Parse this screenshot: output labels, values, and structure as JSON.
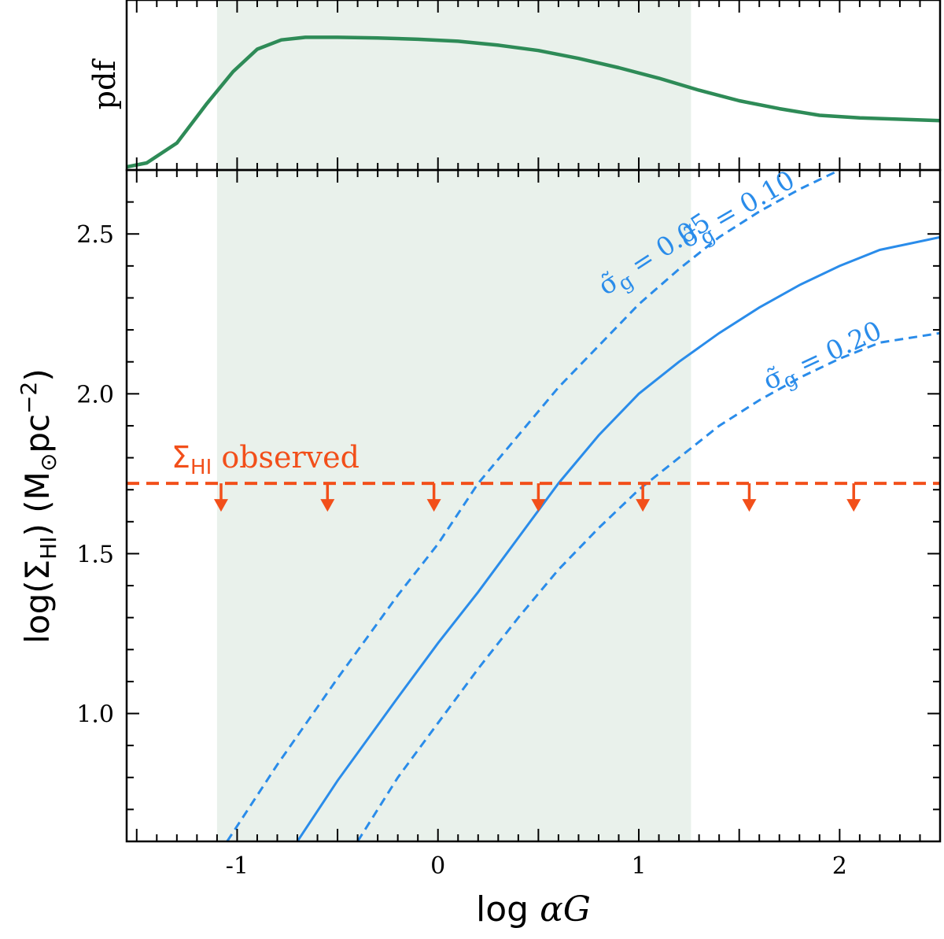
{
  "chart_data": [
    {
      "type": "line",
      "panel": "top",
      "ylabel": "pdf",
      "x_range": [
        -1.55,
        2.5
      ],
      "shaded_region": {
        "x_start": -1.1,
        "x_end": 1.26,
        "color": "#e9f1eb"
      },
      "series": [
        {
          "name": "pdf",
          "color": "#2e8b57",
          "x": [
            -1.55,
            -1.45,
            -1.3,
            -1.15,
            -1.02,
            -0.9,
            -0.78,
            -0.66,
            -0.5,
            -0.3,
            -0.1,
            0.1,
            0.3,
            0.5,
            0.7,
            0.9,
            1.1,
            1.3,
            1.5,
            1.7,
            1.9,
            2.1,
            2.3,
            2.5
          ],
          "y": [
            0.0,
            0.03,
            0.18,
            0.48,
            0.72,
            0.89,
            0.96,
            0.98,
            0.98,
            0.975,
            0.965,
            0.95,
            0.92,
            0.88,
            0.82,
            0.75,
            0.67,
            0.58,
            0.5,
            0.44,
            0.39,
            0.37,
            0.36,
            0.35
          ]
        }
      ]
    },
    {
      "type": "line",
      "panel": "bottom",
      "xlabel_main": "log ",
      "xlabel_greek": "αG",
      "ylabel": "log(Σ_HI) (M_⊙pc^−2)",
      "xlim": [
        -1.55,
        2.5
      ],
      "ylim": [
        0.6,
        2.7
      ],
      "x_ticks": [
        -1,
        0,
        1,
        2
      ],
      "x_tick_labels": [
        "-1",
        "0",
        "1",
        "2"
      ],
      "y_ticks": [
        1.0,
        1.5,
        2.0,
        2.5
      ],
      "y_tick_labels": [
        "1.0",
        "1.5",
        "2.0",
        "2.5"
      ],
      "shaded_region": {
        "x_start": -1.1,
        "x_end": 1.26,
        "color": "#e9f1eb"
      },
      "series": [
        {
          "name": "σ̃g = 0.05",
          "label_prefix": "σ̃",
          "label_sub": "g",
          "label_value": " = 0.05",
          "color": "#2a8cea",
          "dash": "dashed",
          "x": [
            -1.05,
            -0.8,
            -0.5,
            -0.2,
            0.0,
            0.2,
            0.4,
            0.6,
            0.8,
            1.0,
            1.2,
            1.4,
            1.6,
            1.8,
            2.0
          ],
          "y": [
            0.6,
            0.84,
            1.11,
            1.37,
            1.53,
            1.72,
            1.87,
            2.02,
            2.15,
            2.28,
            2.39,
            2.49,
            2.57,
            2.64,
            2.7
          ]
        },
        {
          "name": "σ̃g = 0.10",
          "label_prefix": "σ̃",
          "label_sub": "g",
          "label_value": " = 0.10",
          "color": "#2a8cea",
          "dash": "solid",
          "x": [
            -0.7,
            -0.5,
            -0.2,
            0.0,
            0.2,
            0.4,
            0.6,
            0.8,
            1.0,
            1.2,
            1.4,
            1.6,
            1.8,
            2.0,
            2.2,
            2.5
          ],
          "y": [
            0.6,
            0.79,
            1.05,
            1.22,
            1.38,
            1.55,
            1.72,
            1.87,
            2.0,
            2.1,
            2.19,
            2.27,
            2.34,
            2.4,
            2.45,
            2.49
          ]
        },
        {
          "name": "σ̃g = 0.20",
          "label_prefix": "σ̃",
          "label_sub": "g",
          "label_value": " = 0.20",
          "color": "#2a8cea",
          "dash": "dashed",
          "x": [
            -0.4,
            -0.2,
            0.0,
            0.2,
            0.4,
            0.6,
            0.8,
            1.0,
            1.2,
            1.4,
            1.6,
            1.8,
            2.0,
            2.2,
            2.5
          ],
          "y": [
            0.6,
            0.8,
            0.97,
            1.14,
            1.3,
            1.45,
            1.58,
            1.7,
            1.8,
            1.9,
            1.98,
            2.05,
            2.11,
            2.16,
            2.19
          ]
        },
        {
          "name": "Σ_HI observed",
          "label_sigma": "Σ",
          "label_sub": "HI",
          "label_text": " observed",
          "color": "#f24f1a",
          "dash": "dashed",
          "type": "upper-limit",
          "y_value": 1.72,
          "arrow_x": [
            -1.08,
            -0.55,
            -0.02,
            0.5,
            1.02,
            1.55,
            2.07
          ]
        }
      ]
    }
  ]
}
